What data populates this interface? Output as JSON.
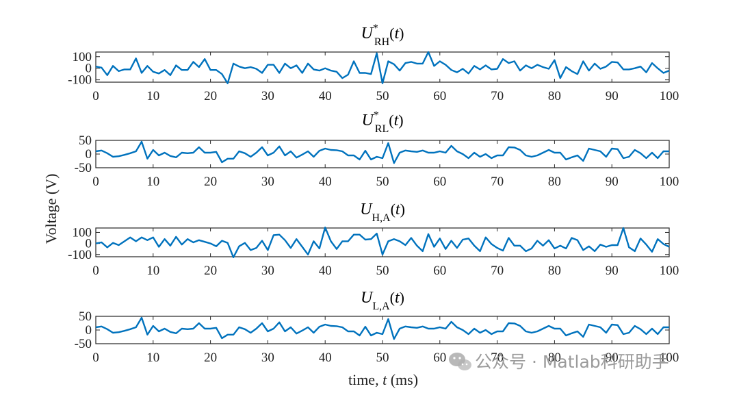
{
  "chart_data": [
    {
      "type": "line",
      "title_symbol": "U",
      "title_sup": "*",
      "title_sub": "RH",
      "title_arg": "t",
      "x": [
        0,
        1,
        2,
        3,
        4,
        5,
        6,
        7,
        8,
        9,
        10,
        11,
        12,
        13,
        14,
        15,
        16,
        17,
        18,
        19,
        20,
        21,
        22,
        23,
        24,
        25,
        26,
        27,
        28,
        29,
        30,
        31,
        32,
        33,
        34,
        35,
        36,
        37,
        38,
        39,
        40,
        41,
        42,
        43,
        44,
        45,
        46,
        47,
        48,
        49,
        50,
        51,
        52,
        53,
        54,
        55,
        56,
        57,
        58,
        59,
        60,
        61,
        62,
        63,
        64,
        65,
        66,
        67,
        68,
        69,
        70,
        71,
        72,
        73,
        74,
        75,
        76,
        77,
        78,
        79,
        80,
        81,
        82,
        83,
        84,
        85,
        86,
        87,
        88,
        89,
        90,
        91,
        92,
        93,
        94,
        95,
        96,
        97,
        98,
        99,
        100
      ],
      "values": [
        15,
        5,
        -60,
        20,
        -25,
        -10,
        -10,
        85,
        -40,
        20,
        -30,
        -45,
        -15,
        -60,
        25,
        -15,
        -15,
        55,
        10,
        80,
        -15,
        -15,
        -50,
        -130,
        40,
        15,
        0,
        10,
        -5,
        -40,
        30,
        30,
        -40,
        40,
        0,
        25,
        -40,
        40,
        -10,
        -20,
        0,
        -20,
        -30,
        -85,
        -55,
        60,
        -40,
        -40,
        -50,
        130,
        -130,
        60,
        35,
        -20,
        45,
        55,
        40,
        40,
        140,
        20,
        60,
        30,
        -15,
        -35,
        -5,
        -45,
        20,
        -10,
        25,
        -10,
        -5,
        80,
        45,
        60,
        -20,
        25,
        0,
        30,
        10,
        -5,
        70,
        -85,
        10,
        -25,
        -50,
        60,
        -20,
        40,
        -5,
        15,
        55,
        50,
        -10,
        -10,
        0,
        15,
        -35,
        45,
        0,
        -40,
        -20
      ],
      "xlim": [
        0,
        100
      ],
      "ylim": [
        -120,
        140
      ],
      "yticks": [
        -100,
        0,
        100
      ],
      "xticks": [
        0,
        10,
        20,
        30,
        40,
        50,
        60,
        70,
        80,
        90,
        100
      ],
      "color": "#0072BD"
    },
    {
      "type": "line",
      "title_symbol": "U",
      "title_sup": "*",
      "title_sub": "RL",
      "title_arg": "t",
      "x": [
        0,
        1,
        2,
        3,
        4,
        5,
        6,
        7,
        8,
        9,
        10,
        11,
        12,
        13,
        14,
        15,
        16,
        17,
        18,
        19,
        20,
        21,
        22,
        23,
        24,
        25,
        26,
        27,
        28,
        29,
        30,
        31,
        32,
        33,
        34,
        35,
        36,
        37,
        38,
        39,
        40,
        41,
        42,
        43,
        44,
        45,
        46,
        47,
        48,
        49,
        50,
        51,
        52,
        53,
        54,
        55,
        56,
        57,
        58,
        59,
        60,
        61,
        62,
        63,
        64,
        65,
        66,
        67,
        68,
        69,
        70,
        71,
        72,
        73,
        74,
        75,
        76,
        77,
        78,
        79,
        80,
        81,
        82,
        83,
        84,
        85,
        86,
        87,
        88,
        89,
        90,
        91,
        92,
        93,
        94,
        95,
        96,
        97,
        98,
        99,
        100
      ],
      "values": [
        10,
        13,
        3,
        -10,
        -8,
        -3,
        3,
        10,
        45,
        -17,
        15,
        -5,
        5,
        -7,
        -12,
        5,
        3,
        5,
        25,
        5,
        5,
        8,
        -30,
        -17,
        -17,
        10,
        3,
        -10,
        5,
        25,
        -5,
        5,
        28,
        -5,
        10,
        -13,
        -2,
        10,
        -10,
        12,
        20,
        15,
        14,
        10,
        -5,
        -5,
        -20,
        12,
        -20,
        -10,
        -15,
        40,
        -33,
        5,
        13,
        10,
        8,
        13,
        5,
        5,
        10,
        5,
        30,
        10,
        0,
        -15,
        5,
        -10,
        0,
        -15,
        -5,
        -5,
        25,
        24,
        15,
        -5,
        -10,
        -5,
        5,
        15,
        5,
        5,
        -20,
        -12,
        -5,
        -25,
        20,
        15,
        10,
        -10,
        20,
        18,
        -15,
        -10,
        15,
        3,
        -15,
        5,
        -15,
        10,
        10
      ],
      "xlim": [
        0,
        100
      ],
      "ylim": [
        -50,
        50
      ],
      "yticks": [
        -50,
        0,
        50
      ],
      "xticks": [
        0,
        10,
        20,
        30,
        40,
        50,
        60,
        70,
        80,
        90,
        100
      ],
      "color": "#0072BD"
    },
    {
      "type": "line",
      "title_symbol": "U",
      "title_sup": "",
      "title_sub": "H,A",
      "title_arg": "t",
      "x": [
        0,
        1,
        2,
        3,
        4,
        5,
        6,
        7,
        8,
        9,
        10,
        11,
        12,
        13,
        14,
        15,
        16,
        17,
        18,
        19,
        20,
        21,
        22,
        23,
        24,
        25,
        26,
        27,
        28,
        29,
        30,
        31,
        32,
        33,
        34,
        35,
        36,
        37,
        38,
        39,
        40,
        41,
        42,
        43,
        44,
        45,
        46,
        47,
        48,
        49,
        50,
        51,
        52,
        53,
        54,
        55,
        56,
        57,
        58,
        59,
        60,
        61,
        62,
        63,
        64,
        65,
        66,
        67,
        68,
        69,
        70,
        71,
        72,
        73,
        74,
        75,
        76,
        77,
        78,
        79,
        80,
        81,
        82,
        83,
        84,
        85,
        86,
        87,
        88,
        89,
        90,
        91,
        92,
        93,
        94,
        95,
        96,
        97,
        98,
        99,
        100
      ],
      "values": [
        0,
        10,
        -35,
        5,
        -15,
        20,
        55,
        20,
        55,
        30,
        55,
        -30,
        40,
        -20,
        60,
        -10,
        40,
        10,
        30,
        15,
        0,
        -25,
        25,
        5,
        -125,
        -25,
        5,
        -60,
        -40,
        25,
        -60,
        75,
        80,
        30,
        -40,
        40,
        -30,
        -100,
        20,
        -45,
        145,
        20,
        -50,
        20,
        20,
        80,
        80,
        35,
        40,
        90,
        -100,
        20,
        40,
        20,
        -15,
        50,
        -20,
        -70,
        85,
        -30,
        45,
        -50,
        25,
        -40,
        35,
        45,
        -20,
        -70,
        55,
        -5,
        -40,
        -65,
        50,
        -20,
        -20,
        -70,
        -45,
        25,
        -20,
        30,
        -45,
        -20,
        -45,
        50,
        30,
        -60,
        -25,
        -70,
        -10,
        -30,
        -15,
        -15,
        140,
        -35,
        -70,
        45,
        -10,
        -75,
        40,
        -5,
        -30
      ],
      "xlim": [
        0,
        100
      ],
      "ylim": [
        -120,
        140
      ],
      "yticks": [
        -100,
        0,
        100
      ],
      "xticks": [
        0,
        10,
        20,
        30,
        40,
        50,
        60,
        70,
        80,
        90,
        100
      ],
      "color": "#0072BD"
    },
    {
      "type": "line",
      "title_symbol": "U",
      "title_sup": "",
      "title_sub": "L,A",
      "title_arg": "t",
      "x": [
        0,
        1,
        2,
        3,
        4,
        5,
        6,
        7,
        8,
        9,
        10,
        11,
        12,
        13,
        14,
        15,
        16,
        17,
        18,
        19,
        20,
        21,
        22,
        23,
        24,
        25,
        26,
        27,
        28,
        29,
        30,
        31,
        32,
        33,
        34,
        35,
        36,
        37,
        38,
        39,
        40,
        41,
        42,
        43,
        44,
        45,
        46,
        47,
        48,
        49,
        50,
        51,
        52,
        53,
        54,
        55,
        56,
        57,
        58,
        59,
        60,
        61,
        62,
        63,
        64,
        65,
        66,
        67,
        68,
        69,
        70,
        71,
        72,
        73,
        74,
        75,
        76,
        77,
        78,
        79,
        80,
        81,
        82,
        83,
        84,
        85,
        86,
        87,
        88,
        89,
        90,
        91,
        92,
        93,
        94,
        95,
        96,
        97,
        98,
        99,
        100
      ],
      "values": [
        10,
        13,
        3,
        -10,
        -8,
        -3,
        3,
        10,
        45,
        -17,
        15,
        -5,
        5,
        -7,
        -12,
        5,
        3,
        5,
        25,
        5,
        5,
        8,
        -30,
        -17,
        -17,
        10,
        3,
        -10,
        5,
        25,
        -5,
        5,
        28,
        -5,
        10,
        -13,
        -2,
        10,
        -10,
        12,
        20,
        15,
        14,
        10,
        -5,
        -5,
        -20,
        12,
        -20,
        -10,
        -15,
        40,
        -33,
        5,
        13,
        10,
        8,
        13,
        5,
        5,
        10,
        5,
        30,
        10,
        0,
        -15,
        5,
        -10,
        0,
        -15,
        -5,
        -5,
        25,
        24,
        15,
        -5,
        -10,
        -5,
        5,
        15,
        5,
        5,
        -20,
        -12,
        -5,
        -25,
        20,
        15,
        10,
        -10,
        20,
        18,
        -15,
        -10,
        15,
        3,
        -15,
        5,
        -15,
        10,
        10
      ],
      "xlim": [
        0,
        100
      ],
      "ylim": [
        -50,
        50
      ],
      "yticks": [
        -50,
        0,
        50
      ],
      "xticks": [
        0,
        10,
        20,
        30,
        40,
        50,
        60,
        70,
        80,
        90,
        100
      ],
      "color": "#0072BD"
    }
  ],
  "labels": {
    "ylabel": "Voltage (V)",
    "xlabel_prefix": "time, ",
    "xlabel_var": "t",
    "xlabel_suffix": " (ms)",
    "paren_open": "(",
    "paren_close": ")"
  },
  "watermark": {
    "text": "公众号 · Matlab科研助手",
    "icon": "wechat-icon"
  }
}
